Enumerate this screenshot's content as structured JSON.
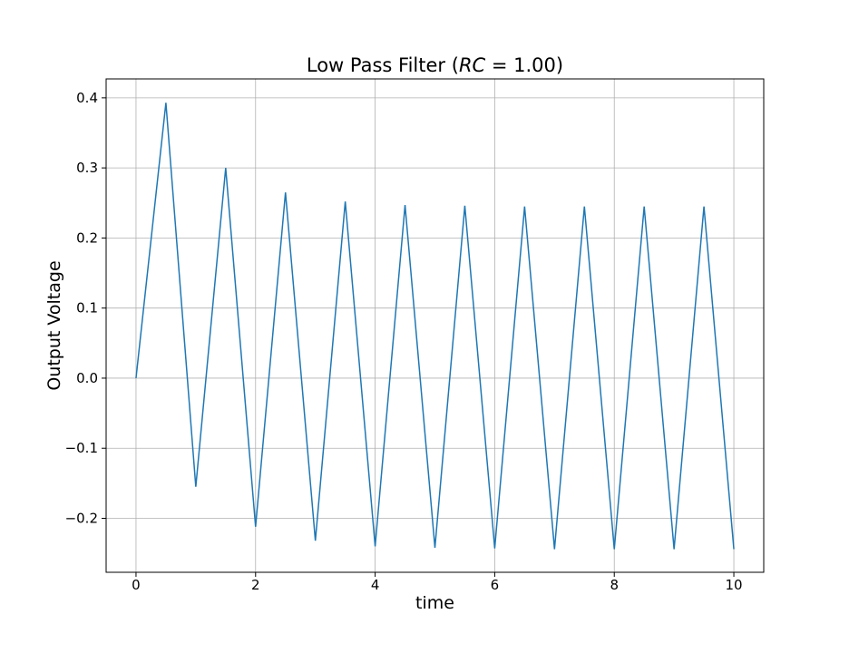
{
  "chart_data": {
    "type": "line",
    "title": {
      "prefix": "Low Pass Filter (",
      "math_var": "RC",
      "math_rest": " = 1.00",
      "suffix": ")"
    },
    "xlabel": "time",
    "ylabel": "Output Voltage",
    "xlim": [
      -0.5,
      10.5
    ],
    "ylim": [
      -0.277,
      0.427
    ],
    "grid": true,
    "x_ticks": [
      0,
      2,
      4,
      6,
      8,
      10
    ],
    "x_tick_labels": [
      "0",
      "2",
      "4",
      "6",
      "8",
      "10"
    ],
    "y_ticks": [
      -0.2,
      -0.1,
      0.0,
      0.1,
      0.2,
      0.3,
      0.4
    ],
    "y_tick_labels": [
      "−0.2",
      "−0.1",
      "0.0",
      "0.1",
      "0.2",
      "0.3",
      "0.4"
    ],
    "colors": {
      "line": "#1f77b4",
      "grid": "#b0b0b0"
    },
    "series": [
      {
        "x": [
          0,
          0.5,
          1,
          1.5,
          2,
          2.5,
          3,
          3.5,
          4,
          4.5,
          5,
          5.5,
          6,
          6.5,
          7,
          7.5,
          8,
          8.5,
          9,
          9.5,
          10
        ],
        "y": [
          0.0,
          0.393,
          -0.155,
          0.3,
          -0.212,
          0.265,
          -0.232,
          0.252,
          -0.24,
          0.247,
          -0.242,
          0.246,
          -0.243,
          0.245,
          -0.244,
          0.245,
          -0.244,
          0.245,
          -0.244,
          0.245,
          -0.244
        ]
      }
    ]
  }
}
